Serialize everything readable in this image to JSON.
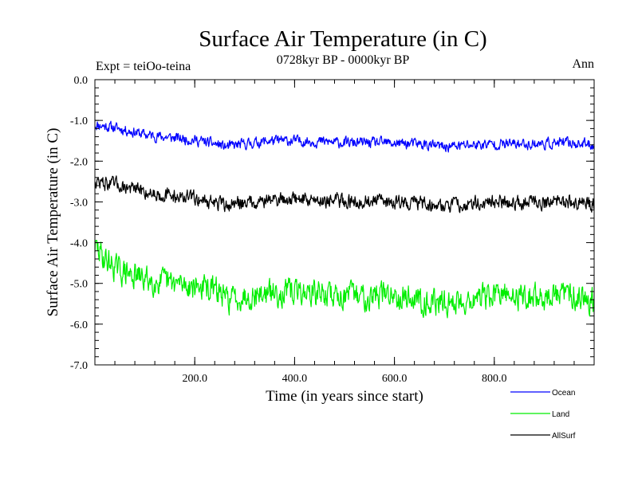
{
  "chart_data": {
    "type": "line",
    "title": "Surface Air Temperature (in C)",
    "subtitle": "0728kyr BP - 0000kyr BP",
    "left_annotation": "Expt = teiOo-teina",
    "right_annotation": "Ann",
    "xlabel": "Time (in years since start)",
    "ylabel": "Surface Air Temperature (in C)",
    "xlim": [
      0,
      1000
    ],
    "ylim": [
      -7.0,
      0.0
    ],
    "x_ticks": [
      200,
      400,
      600,
      800
    ],
    "x_tick_labels": [
      "200.0",
      "400.0",
      "600.0",
      "800.0"
    ],
    "y_ticks": [
      0,
      -1,
      -2,
      -3,
      -4,
      -5,
      -6,
      -7
    ],
    "y_tick_labels": [
      "0.0",
      "-1.0",
      "-2.0",
      "-3.0",
      "-4.0",
      "-5.0",
      "-6.0",
      "-7.0"
    ],
    "grid": false,
    "legend_position": "below-right",
    "series": [
      {
        "name": "Ocean",
        "color": "#0000ff",
        "noise_amplitude": 0.11,
        "x": [
          0,
          50,
          100,
          150,
          200,
          250,
          260,
          300,
          350,
          400,
          450,
          500,
          550,
          600,
          650,
          700,
          750,
          800,
          850,
          900,
          950,
          1000
        ],
        "values": [
          -1.1,
          -1.2,
          -1.35,
          -1.42,
          -1.48,
          -1.6,
          -1.65,
          -1.58,
          -1.5,
          -1.5,
          -1.52,
          -1.55,
          -1.55,
          -1.56,
          -1.58,
          -1.65,
          -1.6,
          -1.58,
          -1.58,
          -1.57,
          -1.55,
          -1.6
        ]
      },
      {
        "name": "Land",
        "color": "#00ee00",
        "noise_amplitude": 0.27,
        "x": [
          0,
          20,
          50,
          100,
          150,
          200,
          250,
          260,
          300,
          350,
          400,
          450,
          500,
          550,
          600,
          650,
          700,
          750,
          800,
          850,
          900,
          950,
          1000
        ],
        "values": [
          -4.1,
          -4.4,
          -4.7,
          -4.9,
          -5.0,
          -5.05,
          -5.2,
          -5.4,
          -5.3,
          -5.25,
          -5.2,
          -5.25,
          -5.3,
          -5.3,
          -5.25,
          -5.4,
          -5.5,
          -5.4,
          -5.3,
          -5.3,
          -5.35,
          -5.25,
          -5.4
        ]
      },
      {
        "name": "AllSurf",
        "color": "#000000",
        "noise_amplitude": 0.15,
        "x": [
          0,
          50,
          100,
          150,
          200,
          250,
          260,
          300,
          350,
          400,
          450,
          500,
          550,
          600,
          650,
          700,
          750,
          800,
          850,
          900,
          950,
          1000
        ],
        "values": [
          -2.5,
          -2.6,
          -2.75,
          -2.85,
          -2.9,
          -3.05,
          -3.1,
          -3.0,
          -2.95,
          -2.92,
          -2.95,
          -2.98,
          -2.98,
          -3.0,
          -3.02,
          -3.1,
          -3.05,
          -3.0,
          -3.0,
          -3.0,
          -3.0,
          -3.05
        ]
      }
    ]
  }
}
